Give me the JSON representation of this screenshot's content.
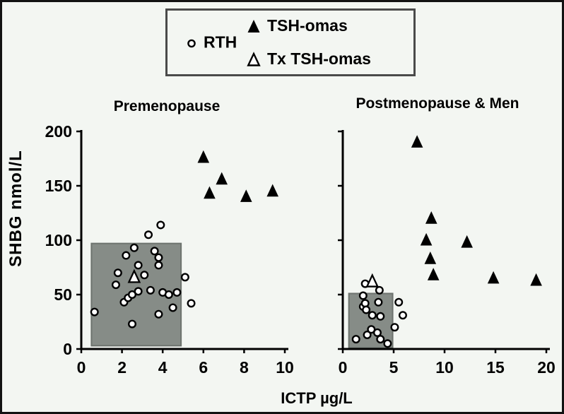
{
  "figure": {
    "y_axis_label": "SHBG nmol/L",
    "x_axis_label": "ICTP µg/L"
  },
  "legend": {
    "items": [
      {
        "marker": "circle-open",
        "label": "RTH"
      },
      {
        "marker": "triangle-filled",
        "label": "TSH-omas"
      },
      {
        "marker": "triangle-open",
        "label": "Tx TSH-omas"
      }
    ]
  },
  "colors": {
    "background": "#f3f6f2",
    "figure_border": "#121212",
    "normal_range_box": "#868c87",
    "normal_range_border": "#6d736e",
    "marker_stroke": "#000000",
    "marker_fill_open": "#ffffff",
    "marker_fill_solid": "#000000",
    "legend_border": "#4a4a4a"
  },
  "chart_data": [
    {
      "type": "scatter",
      "title": "Premenopause",
      "xlabel": "ICTP µg/L",
      "ylabel": "SHBG nmol/L",
      "xlim": [
        0,
        10
      ],
      "ylim": [
        0,
        200
      ],
      "xticks": [
        0,
        2,
        4,
        6,
        8,
        10
      ],
      "yticks": [
        0,
        50,
        100,
        150,
        200
      ],
      "ytick_labels": true,
      "grid": false,
      "normal_range_box": {
        "x": [
          0.5,
          4.9
        ],
        "y": [
          3,
          97
        ]
      },
      "series": [
        {
          "name": "RTH",
          "marker": "circle-open",
          "points": [
            [
              0.65,
              34
            ],
            [
              1.7,
              59
            ],
            [
              1.8,
              70
            ],
            [
              2.1,
              43
            ],
            [
              2.2,
              86
            ],
            [
              2.3,
              47
            ],
            [
              2.5,
              50
            ],
            [
              2.5,
              23
            ],
            [
              2.6,
              93
            ],
            [
              2.8,
              77
            ],
            [
              2.8,
              53
            ],
            [
              3.1,
              68
            ],
            [
              3.3,
              105
            ],
            [
              3.4,
              54
            ],
            [
              3.6,
              90
            ],
            [
              3.8,
              84
            ],
            [
              3.8,
              77
            ],
            [
              3.8,
              32
            ],
            [
              3.9,
              114
            ],
            [
              4.0,
              52
            ],
            [
              4.3,
              50
            ],
            [
              4.5,
              38
            ],
            [
              4.7,
              52
            ],
            [
              5.1,
              66
            ],
            [
              5.4,
              42
            ]
          ]
        },
        {
          "name": "TSH-omas",
          "marker": "triangle-filled",
          "points": [
            [
              6.0,
              176
            ],
            [
              6.3,
              143
            ],
            [
              6.9,
              156
            ],
            [
              8.1,
              140
            ],
            [
              9.4,
              145
            ]
          ]
        },
        {
          "name": "Tx TSH-omas",
          "marker": "triangle-open",
          "points": [
            [
              2.6,
              66
            ]
          ]
        }
      ]
    },
    {
      "type": "scatter",
      "title": "Postmenopause & Men",
      "xlabel": "ICTP µg/L",
      "ylabel": "SHBG nmol/L",
      "xlim": [
        0,
        20
      ],
      "ylim": [
        0,
        200
      ],
      "xticks": [
        0,
        5,
        10,
        15,
        20
      ],
      "yticks": [
        0,
        50,
        100,
        150,
        200
      ],
      "ytick_labels": false,
      "grid": false,
      "normal_range_box": {
        "x": [
          0.6,
          4.9
        ],
        "y": [
          1,
          51
        ]
      },
      "series": [
        {
          "name": "RTH",
          "marker": "circle-open",
          "points": [
            [
              1.3,
              9
            ],
            [
              2.0,
              39
            ],
            [
              2.0,
              49
            ],
            [
              2.2,
              60
            ],
            [
              2.2,
              42
            ],
            [
              2.3,
              36
            ],
            [
              2.4,
              13
            ],
            [
              2.8,
              18
            ],
            [
              2.9,
              31
            ],
            [
              3.4,
              15
            ],
            [
              3.5,
              43
            ],
            [
              3.6,
              54
            ],
            [
              3.7,
              30
            ],
            [
              3.7,
              9
            ],
            [
              4.4,
              5
            ],
            [
              5.1,
              20
            ],
            [
              5.5,
              43
            ],
            [
              5.9,
              31
            ]
          ]
        },
        {
          "name": "TSH-omas",
          "marker": "triangle-filled",
          "points": [
            [
              7.3,
              190
            ],
            [
              8.2,
              100
            ],
            [
              8.6,
              83
            ],
            [
              8.7,
              120
            ],
            [
              8.9,
              68
            ],
            [
              12.2,
              98
            ],
            [
              14.8,
              65
            ],
            [
              19.0,
              63
            ]
          ]
        },
        {
          "name": "Tx TSH-omas",
          "marker": "triangle-open",
          "points": [
            [
              2.9,
              62
            ]
          ]
        }
      ]
    }
  ]
}
